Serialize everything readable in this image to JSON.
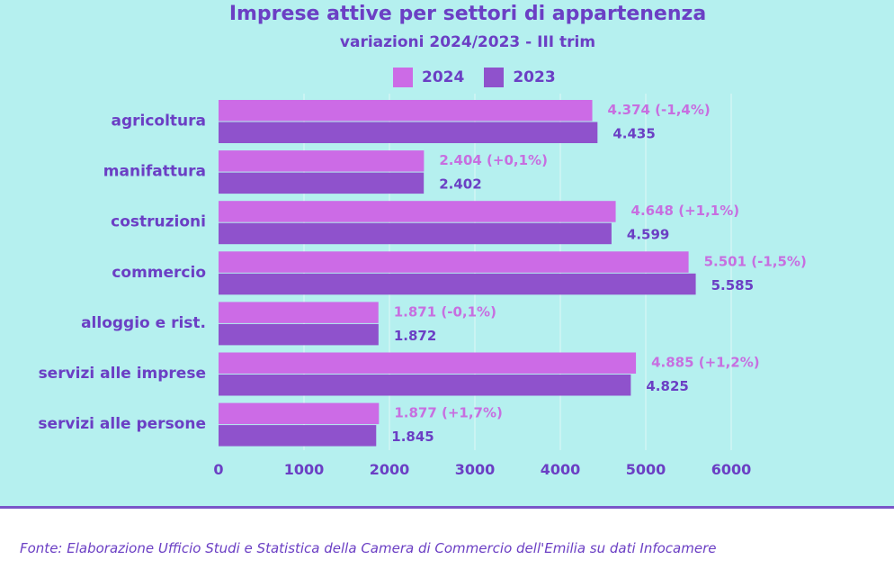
{
  "chart_data": {
    "type": "bar",
    "orientation": "horizontal",
    "title": "Imprese attive per settori di appartenenza",
    "subtitle": "variazioni 2024/2023 - III trim",
    "categories": [
      "agricoltura",
      "manifattura",
      "costruzioni",
      "commercio",
      "alloggio e rist.",
      "servizi alle imprese",
      "servizi alle persone"
    ],
    "series": [
      {
        "name": "2024",
        "color": "#cc6be6",
        "values": [
          4374,
          2404,
          4648,
          5501,
          1871,
          4885,
          1877
        ],
        "labels": [
          "4.374 (-1,4%)",
          "2.404 (+0,1%)",
          "4.648 (+1,1%)",
          "5.501 (-1,5%)",
          "1.871 (-0,1%)",
          "4.885 (+1,2%)",
          "1.877 (+1,7%)"
        ]
      },
      {
        "name": "2023",
        "color": "#8f52cc",
        "values": [
          4435,
          2402,
          4599,
          5585,
          1872,
          4825,
          1845
        ],
        "labels": [
          "4.435",
          "2.402",
          "4.599",
          "5.585",
          "1.872",
          "4.825",
          "1.845"
        ]
      }
    ],
    "xlim": [
      0,
      6000
    ],
    "xticks": [
      0,
      1000,
      2000,
      3000,
      4000,
      5000,
      6000
    ],
    "xlabel": "",
    "ylabel": "",
    "grid": true,
    "legend_position": "top-center"
  },
  "colors": {
    "background": "#b5f0ef",
    "text": "#6b3fc4",
    "grid": "#d8f7f6",
    "label_2024": "#c76fe0"
  },
  "footnote": "Fonte: Elaborazione Ufficio Studi e Statistica della Camera di Commercio dell'Emilia su dati Infocamere"
}
